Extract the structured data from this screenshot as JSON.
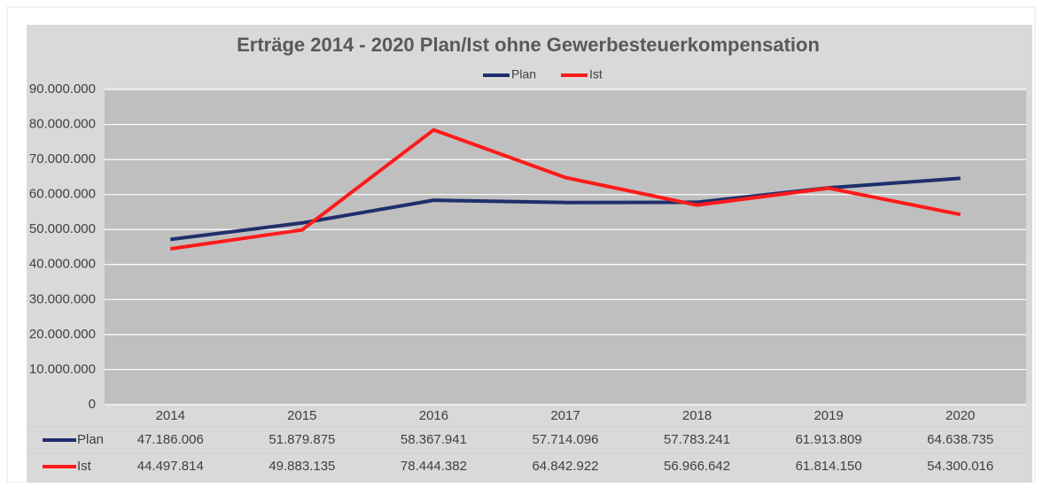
{
  "chart_data": {
    "type": "line",
    "title": "Erträge 2014 - 2020 Plan/Ist ohne Gewerbesteuerkompensation",
    "categories": [
      "2014",
      "2015",
      "2016",
      "2017",
      "2018",
      "2019",
      "2020"
    ],
    "series": [
      {
        "name": "Plan",
        "color": "#1f2f6b",
        "values": [
          47186006,
          51879875,
          58367941,
          57714096,
          57783241,
          61913809,
          64638735
        ],
        "value_labels": [
          "47.186.006",
          "51.879.875",
          "58.367.941",
          "57.714.096",
          "57.783.241",
          "61.913.809",
          "64.638.735"
        ]
      },
      {
        "name": "Ist",
        "color": "#ff1a1a",
        "values": [
          44497814,
          49883135,
          78444382,
          64842922,
          56966642,
          61814150,
          54300016
        ],
        "value_labels": [
          "44.497.814",
          "49.883.135",
          "78.444.382",
          "64.842.922",
          "56.966.642",
          "61.814.150",
          "54.300.016"
        ]
      }
    ],
    "ylim": [
      0,
      90000000
    ],
    "yticks": [
      0,
      {
        "value": 10000000,
        "label": "10.000.000"
      },
      {
        "value": 20000000,
        "label": "20.000.000"
      },
      {
        "value": 30000000,
        "label": "30.000.000"
      },
      {
        "value": 40000000,
        "label": "40.000.000"
      },
      {
        "value": 50000000,
        "label": "50.000.000"
      },
      {
        "value": 60000000,
        "label": "60.000.000"
      },
      {
        "value": 70000000,
        "label": "70.000.000"
      },
      {
        "value": 80000000,
        "label": "80.000.000"
      },
      {
        "value": 90000000,
        "label": "90.000.000"
      }
    ],
    "grid": true,
    "legend": "top"
  }
}
